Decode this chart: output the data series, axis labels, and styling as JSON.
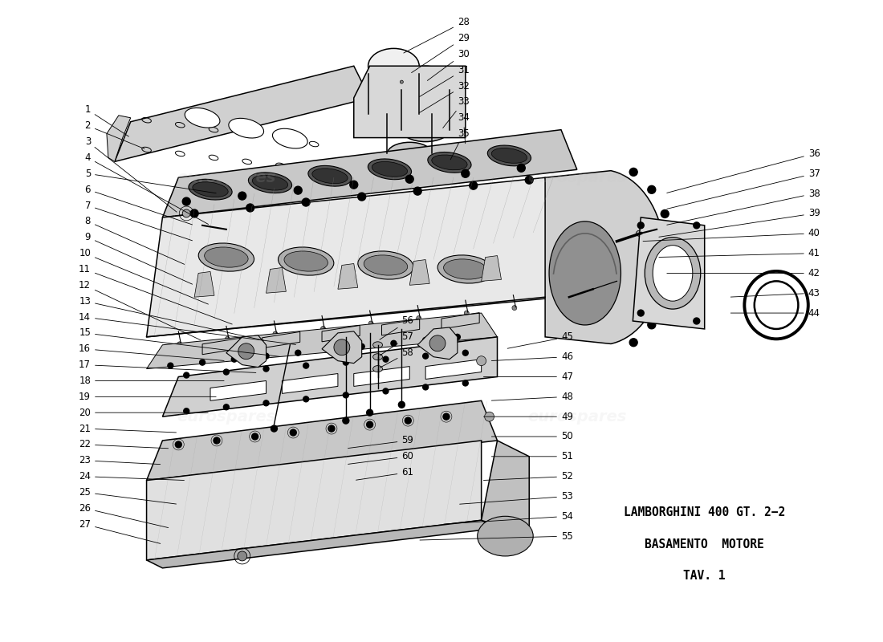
{
  "bg_color": "#ffffff",
  "title_line1": "LAMBORGHINI 400 GT. 2−2",
  "title_line2": "BASAMENTO  MOTORE",
  "title_line3": "TAV. 1",
  "watermark": "eurospares",
  "left_labels": [
    "1",
    "2",
    "3",
    "4",
    "5",
    "6",
    "7",
    "8",
    "9",
    "10",
    "11",
    "12",
    "13",
    "14",
    "15",
    "16",
    "17",
    "18",
    "19",
    "20",
    "21",
    "22",
    "23",
    "24",
    "25",
    "26",
    "27"
  ],
  "right_labels_top": [
    "28",
    "29",
    "30",
    "31",
    "32",
    "33",
    "34",
    "35"
  ],
  "right_labels_mid": [
    "36",
    "37",
    "38",
    "39",
    "40",
    "41",
    "42",
    "43",
    "44"
  ],
  "right_labels_bot": [
    "45",
    "46",
    "47",
    "48",
    "49",
    "50",
    "51",
    "52",
    "53",
    "54",
    "55"
  ],
  "mid_labels": [
    "56",
    "57",
    "58",
    "59",
    "60",
    "61"
  ],
  "watermark_color": "#c8c8c8",
  "line_color": "#000000",
  "label_color": "#000000",
  "label_fontsize": 8.5,
  "title_fontsize": 10.5,
  "lw_main": 1.1,
  "lw_detail": 0.7,
  "lw_leader": 0.6
}
